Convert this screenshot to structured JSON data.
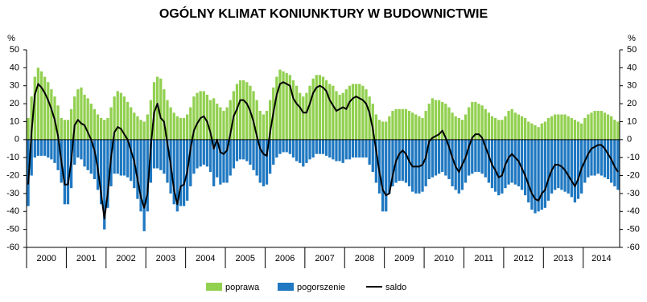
{
  "chart_data": {
    "type": "bar_line",
    "title": "OGÓLNY KLIMAT KONIUNKTURY W BUDOWNICTWIE",
    "y_unit": "%",
    "categories": [
      "2000",
      null,
      null,
      null,
      null,
      null,
      null,
      null,
      null,
      null,
      null,
      null,
      "2001",
      null,
      null,
      null,
      null,
      null,
      null,
      null,
      null,
      null,
      null,
      null,
      "2002",
      null,
      null,
      null,
      null,
      null,
      null,
      null,
      null,
      null,
      null,
      null,
      "2003",
      null,
      null,
      null,
      null,
      null,
      null,
      null,
      null,
      null,
      null,
      null,
      "2004",
      null,
      null,
      null,
      null,
      null,
      null,
      null,
      null,
      null,
      null,
      null,
      "2005",
      null,
      null,
      null,
      null,
      null,
      null,
      null,
      null,
      null,
      null,
      null,
      "2006",
      null,
      null,
      null,
      null,
      null,
      null,
      null,
      null,
      null,
      null,
      null,
      "2007",
      null,
      null,
      null,
      null,
      null,
      null,
      null,
      null,
      null,
      null,
      null,
      "2008",
      null,
      null,
      null,
      null,
      null,
      null,
      null,
      null,
      null,
      null,
      null,
      "2009",
      null,
      null,
      null,
      null,
      null,
      null,
      null,
      null,
      null,
      null,
      null,
      "2010",
      null,
      null,
      null,
      null,
      null,
      null,
      null,
      null,
      null,
      null,
      null,
      "2011",
      null,
      null,
      null,
      null,
      null,
      null,
      null,
      null,
      null,
      null,
      null,
      "2012",
      null,
      null,
      null,
      null,
      null,
      null,
      null,
      null,
      null,
      null,
      null,
      "2013",
      null,
      null,
      null,
      null,
      null,
      null,
      null,
      null,
      null,
      null,
      null,
      "2014",
      null,
      null,
      null,
      null,
      null,
      null,
      null,
      null,
      null,
      null
    ],
    "series": [
      {
        "name": "poprawa",
        "kind": "bar",
        "color": "#92d050",
        "values": [
          12,
          24,
          35,
          40,
          38,
          35,
          32,
          28,
          24,
          19,
          12,
          11,
          11,
          17,
          24,
          28,
          29,
          25,
          23,
          20,
          17,
          14,
          12,
          11,
          12,
          18,
          24,
          27,
          26,
          24,
          21,
          18,
          15,
          13,
          11,
          10,
          14,
          22,
          32,
          35,
          34,
          28,
          22,
          18,
          15,
          13,
          12,
          12,
          14,
          18,
          24,
          26,
          27,
          27,
          25,
          22,
          23,
          20,
          18,
          16,
          18,
          22,
          27,
          31,
          33,
          33,
          32,
          30,
          27,
          22,
          16,
          14,
          16,
          22,
          29,
          35,
          39,
          38,
          37,
          36,
          33,
          30,
          26,
          24,
          26,
          30,
          34,
          36,
          36,
          35,
          33,
          31,
          30,
          27,
          25,
          26,
          28,
          30,
          31,
          31,
          31,
          30,
          28,
          24,
          20,
          14,
          11,
          10,
          10,
          13,
          16,
          17,
          17,
          17,
          17,
          16,
          15,
          14,
          13,
          12,
          16,
          20,
          23,
          22,
          22,
          21,
          20,
          18,
          15,
          13,
          12,
          11,
          14,
          18,
          21,
          21,
          20,
          19,
          17,
          15,
          13,
          12,
          11,
          11,
          13,
          16,
          17,
          15,
          14,
          13,
          12,
          10,
          9,
          8,
          7,
          9,
          10,
          12,
          13,
          14,
          14,
          14,
          14,
          13,
          12,
          11,
          10,
          9,
          12,
          14,
          15,
          16,
          16,
          16,
          15,
          14,
          13,
          11,
          10
        ]
      },
      {
        "name": "pogorszenie",
        "kind": "bar",
        "color": "#1f78c1",
        "values": [
          -37,
          -20,
          -10,
          -9,
          -9,
          -9,
          -10,
          -11,
          -13,
          -17,
          -24,
          -36,
          -36,
          -27,
          -14,
          -10,
          -11,
          -15,
          -17,
          -19,
          -22,
          -28,
          -36,
          -50,
          -38,
          -26,
          -19,
          -19,
          -20,
          -20,
          -21,
          -23,
          -27,
          -33,
          -40,
          -51,
          -40,
          -24,
          -16,
          -16,
          -17,
          -19,
          -24,
          -30,
          -36,
          -40,
          -37,
          -37,
          -34,
          -26,
          -19,
          -16,
          -15,
          -14,
          -15,
          -18,
          -26,
          -21,
          -25,
          -24,
          -24,
          -20,
          -16,
          -12,
          -11,
          -11,
          -12,
          -14,
          -17,
          -20,
          -24,
          -26,
          -25,
          -19,
          -14,
          -10,
          -8,
          -7,
          -7,
          -8,
          -10,
          -12,
          -13,
          -15,
          -13,
          -11,
          -10,
          -8,
          -8,
          -8,
          -9,
          -10,
          -11,
          -12,
          -12,
          -13,
          -11,
          -11,
          -10,
          -10,
          -10,
          -10,
          -10,
          -14,
          -18,
          -24,
          -30,
          -40,
          -40,
          -30,
          -26,
          -24,
          -23,
          -23,
          -24,
          -26,
          -29,
          -30,
          -30,
          -29,
          -26,
          -22,
          -21,
          -20,
          -19,
          -18,
          -20,
          -22,
          -26,
          -28,
          -30,
          -28,
          -24,
          -20,
          -19,
          -18,
          -18,
          -19,
          -21,
          -24,
          -27,
          -29,
          -31,
          -30,
          -27,
          -25,
          -24,
          -25,
          -26,
          -28,
          -31,
          -35,
          -39,
          -41,
          -40,
          -39,
          -38,
          -34,
          -30,
          -28,
          -27,
          -28,
          -29,
          -30,
          -32,
          -35,
          -33,
          -30,
          -24,
          -21,
          -20,
          -20,
          -19,
          -20,
          -21,
          -22,
          -24,
          -26,
          -28
        ]
      },
      {
        "name": "saldo",
        "kind": "line",
        "color": "#000000",
        "values": [
          -25,
          4,
          25,
          31,
          29,
          26,
          22,
          17,
          11,
          2,
          -12,
          -25,
          -25,
          -12,
          8,
          11,
          9,
          8,
          4,
          0,
          -6,
          -16,
          -30,
          -44,
          -30,
          -10,
          4,
          7,
          6,
          3,
          0,
          -6,
          -12,
          -22,
          -32,
          -38,
          -30,
          -4,
          15,
          20,
          12,
          10,
          -2,
          -14,
          -28,
          -36,
          -26,
          -25,
          -18,
          -5,
          5,
          9,
          12,
          13,
          10,
          4,
          -5,
          0,
          -7,
          -8,
          -6,
          3,
          13,
          17,
          22,
          22,
          20,
          16,
          10,
          2,
          -5,
          -8,
          -9,
          4,
          15,
          25,
          31,
          32,
          31,
          30,
          23,
          20,
          18,
          15,
          15,
          20,
          26,
          29,
          30,
          29,
          27,
          22,
          19,
          16,
          17,
          18,
          17,
          21,
          23,
          24,
          23,
          22,
          20,
          15,
          6,
          -6,
          -18,
          -28,
          -31,
          -30,
          -20,
          -12,
          -8,
          -6,
          -8,
          -12,
          -15,
          -15,
          -15,
          -14,
          -10,
          -1,
          1,
          2,
          3,
          5,
          1,
          -4,
          -10,
          -15,
          -18,
          -14,
          -10,
          -4,
          1,
          3,
          3,
          1,
          -4,
          -9,
          -14,
          -17,
          -21,
          -20,
          -14,
          -10,
          -8,
          -10,
          -12,
          -16,
          -20,
          -25,
          -30,
          -33,
          -34,
          -30,
          -28,
          -22,
          -17,
          -14,
          -14,
          -15,
          -17,
          -20,
          -23,
          -26,
          -22,
          -16,
          -12,
          -8,
          -5,
          -4,
          -3,
          -3,
          -5,
          -8,
          -11,
          -15,
          -18
        ]
      }
    ],
    "ylim": [
      -60,
      50
    ],
    "yticks": [
      -60,
      -50,
      -40,
      -30,
      -20,
      -10,
      0,
      10,
      20,
      30,
      40,
      50
    ],
    "grid": false,
    "legend": "bottom"
  }
}
